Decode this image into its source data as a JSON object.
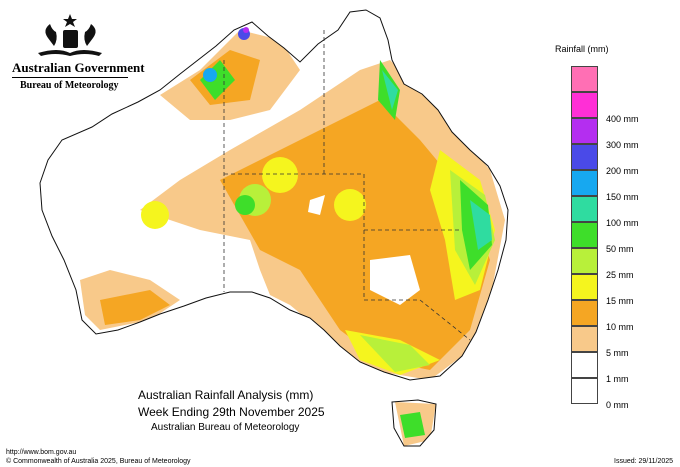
{
  "header": {
    "government": "Australian Government",
    "bureau": "Bureau of Meteorology"
  },
  "legend": {
    "title": "Rainfall (mm)",
    "items": [
      {
        "label": "",
        "color": "#ff6fb4"
      },
      {
        "label": "400 mm",
        "color": "#ff2fd6"
      },
      {
        "label": "300 mm",
        "color": "#b42ef0"
      },
      {
        "label": "200 mm",
        "color": "#4a4ae8"
      },
      {
        "label": "150 mm",
        "color": "#17a8f0"
      },
      {
        "label": "100 mm",
        "color": "#2fdca0"
      },
      {
        "label": "50 mm",
        "color": "#3ede2a"
      },
      {
        "label": "25 mm",
        "color": "#b8f03a"
      },
      {
        "label": "15 mm",
        "color": "#f5f51e"
      },
      {
        "label": "10 mm",
        "color": "#f5a623"
      },
      {
        "label": "5 mm",
        "color": "#f8c98a"
      },
      {
        "label": "1 mm",
        "color": "#ffffff"
      },
      {
        "label": "0 mm",
        "color": "#ffffff"
      }
    ]
  },
  "caption": {
    "line1": "Australian Rainfall Analysis (mm)",
    "line2": "Week Ending 29th November 2025",
    "line3": "Australian Bureau of Meteorology"
  },
  "footer": {
    "url": "http://www.bom.gov.au",
    "copyright": "© Commonwealth of Australia 2025, Bureau of Meteorology",
    "issued": "Issued: 29/11/2025"
  }
}
